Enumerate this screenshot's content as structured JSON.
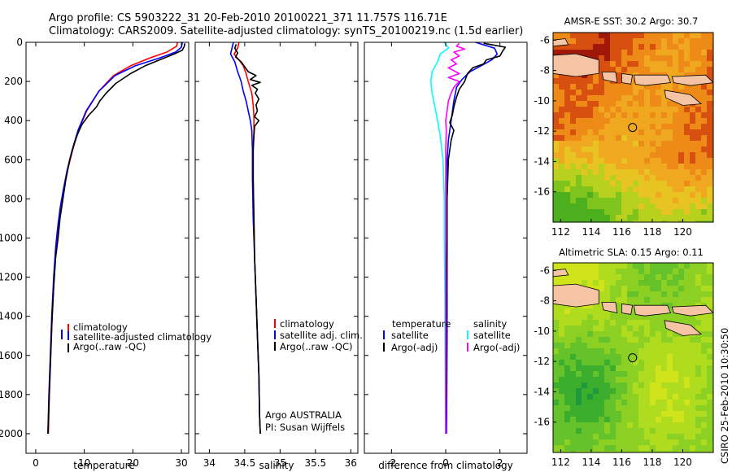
{
  "figure": {
    "title_line1": "Argo profile: CS 5903222_31 20-Feb-2010 20100221_371 11.757S 116.71E",
    "title_line2": "Climatology: CARS2009. Satellite-adjusted climatology: synTS_20100219.nc (1.5d earlier)",
    "credit": "CSIRO 25-Feb-2010 10:30:50"
  },
  "chart_data": [
    {
      "id": "temperature",
      "type": "line",
      "xlabel": "temperature",
      "ylabel": "",
      "xlim": [
        -2,
        31.5
      ],
      "ylim": [
        2100,
        0
      ],
      "xticks": [
        0,
        10,
        20,
        30
      ],
      "yticks": [
        0,
        200,
        400,
        600,
        800,
        1000,
        1200,
        1400,
        1600,
        1800,
        2000
      ],
      "legend_position": "lower-right",
      "series": [
        {
          "name": "climatology",
          "color": "#ff0000",
          "points": [
            [
              29.2,
              0
            ],
            [
              29.0,
              20
            ],
            [
              27.0,
              50
            ],
            [
              23.5,
              80
            ],
            [
              19.5,
              120
            ],
            [
              16.0,
              170
            ],
            [
              13.0,
              250
            ],
            [
              10.5,
              350
            ],
            [
              8.8,
              450
            ],
            [
              7.6,
              550
            ],
            [
              6.6,
              650
            ],
            [
              5.8,
              750
            ],
            [
              5.1,
              850
            ],
            [
              4.6,
              950
            ],
            [
              4.2,
              1050
            ],
            [
              3.8,
              1200
            ],
            [
              3.4,
              1400
            ],
            [
              3.1,
              1600
            ],
            [
              2.8,
              1800
            ],
            [
              2.6,
              2000
            ]
          ]
        },
        {
          "name": "satellite-adjusted climatology",
          "color": "#0000ff",
          "points": [
            [
              30.2,
              0
            ],
            [
              30.0,
              25
            ],
            [
              28.8,
              50
            ],
            [
              25.5,
              80
            ],
            [
              20.5,
              120
            ],
            [
              16.3,
              170
            ],
            [
              13.0,
              250
            ],
            [
              10.4,
              350
            ],
            [
              8.7,
              450
            ],
            [
              7.5,
              550
            ],
            [
              6.5,
              650
            ],
            [
              5.7,
              750
            ],
            [
              5.0,
              850
            ],
            [
              4.5,
              950
            ],
            [
              4.1,
              1050
            ],
            [
              3.7,
              1200
            ],
            [
              3.3,
              1400
            ],
            [
              3.0,
              1600
            ],
            [
              2.7,
              1800
            ],
            [
              2.5,
              2000
            ]
          ]
        },
        {
          "name": "Argo(..raw -QC)",
          "color": "#000000",
          "points": [
            [
              30.7,
              5
            ],
            [
              30.6,
              20
            ],
            [
              30.2,
              40
            ],
            [
              28.5,
              60
            ],
            [
              26.0,
              85
            ],
            [
              22.5,
              120
            ],
            [
              19.5,
              160
            ],
            [
              16.5,
              210
            ],
            [
              14.5,
              260
            ],
            [
              13.2,
              300
            ],
            [
              12.5,
              330
            ],
            [
              11.0,
              370
            ],
            [
              9.5,
              420
            ],
            [
              8.6,
              470
            ],
            [
              7.9,
              520
            ],
            [
              7.0,
              600
            ],
            [
              6.2,
              700
            ],
            [
              5.6,
              800
            ],
            [
              5.0,
              900
            ],
            [
              4.6,
              1000
            ],
            [
              4.1,
              1100
            ],
            [
              3.7,
              1250
            ],
            [
              3.3,
              1450
            ],
            [
              3.0,
              1650
            ],
            [
              2.7,
              1850
            ],
            [
              2.5,
              2000
            ]
          ]
        }
      ]
    },
    {
      "id": "salinity",
      "type": "line",
      "xlabel": "salinity",
      "ylabel": "",
      "xlim": [
        33.8,
        36.1
      ],
      "ylim": [
        2100,
        0
      ],
      "xticks": [
        34,
        34.5,
        35,
        35.5,
        36
      ],
      "legend_position": "lower-right",
      "annotations": [
        "Argo AUSTRALIA",
        "PI: Susan Wijffels"
      ],
      "series": [
        {
          "name": "climatology",
          "color": "#ff0000",
          "points": [
            [
              34.42,
              0
            ],
            [
              34.4,
              30
            ],
            [
              34.35,
              60
            ],
            [
              34.42,
              90
            ],
            [
              34.48,
              120
            ],
            [
              34.52,
              160
            ],
            [
              34.55,
              200
            ],
            [
              34.6,
              260
            ],
            [
              34.62,
              320
            ],
            [
              34.63,
              380
            ],
            [
              34.63,
              450
            ],
            [
              34.62,
              550
            ],
            [
              34.62,
              700
            ],
            [
              34.63,
              900
            ],
            [
              34.64,
              1100
            ],
            [
              34.66,
              1300
            ],
            [
              34.68,
              1500
            ],
            [
              34.7,
              1700
            ],
            [
              34.71,
              1900
            ],
            [
              34.72,
              2000
            ]
          ]
        },
        {
          "name": "satellite adj. clim.",
          "color": "#0000ff",
          "points": [
            [
              34.34,
              0
            ],
            [
              34.32,
              30
            ],
            [
              34.3,
              60
            ],
            [
              34.36,
              100
            ],
            [
              34.4,
              150
            ],
            [
              34.45,
              200
            ],
            [
              34.48,
              250
            ],
            [
              34.52,
              300
            ],
            [
              34.55,
              350
            ],
            [
              34.58,
              400
            ],
            [
              34.6,
              450
            ],
            [
              34.61,
              550
            ],
            [
              34.61,
              700
            ],
            [
              34.62,
              900
            ],
            [
              34.64,
              1100
            ],
            [
              34.66,
              1300
            ],
            [
              34.68,
              1500
            ],
            [
              34.7,
              1700
            ],
            [
              34.71,
              1900
            ],
            [
              34.72,
              2000
            ]
          ]
        },
        {
          "name": "Argo(..raw -QC)",
          "color": "#000000",
          "points": [
            [
              34.38,
              10
            ],
            [
              34.36,
              30
            ],
            [
              34.4,
              55
            ],
            [
              34.37,
              75
            ],
            [
              34.45,
              100
            ],
            [
              34.5,
              125
            ],
            [
              34.55,
              150
            ],
            [
              34.66,
              170
            ],
            [
              34.58,
              190
            ],
            [
              34.72,
              205
            ],
            [
              34.6,
              220
            ],
            [
              34.68,
              240
            ],
            [
              34.65,
              260
            ],
            [
              34.7,
              290
            ],
            [
              34.66,
              320
            ],
            [
              34.68,
              350
            ],
            [
              34.64,
              380
            ],
            [
              34.7,
              400
            ],
            [
              34.64,
              430
            ],
            [
              34.63,
              480
            ],
            [
              34.62,
              550
            ],
            [
              34.62,
              700
            ],
            [
              34.63,
              900
            ],
            [
              34.64,
              1100
            ],
            [
              34.66,
              1300
            ],
            [
              34.68,
              1500
            ],
            [
              34.7,
              1700
            ],
            [
              34.71,
              1900
            ],
            [
              34.72,
              2000
            ]
          ]
        }
      ]
    },
    {
      "id": "difference",
      "type": "line",
      "xlabel": "difference from climatology",
      "ylabel": "",
      "xlim": [
        -3,
        3
      ],
      "ylim": [
        2100,
        0
      ],
      "xticks": [
        -2,
        0,
        2
      ],
      "legend_position": "lower-middle",
      "legend_groups": [
        "temperature",
        "salinity"
      ],
      "series": [
        {
          "name": "satellite",
          "group": "temperature",
          "color": "#0000ff",
          "points": [
            [
              1.1,
              0
            ],
            [
              1.8,
              30
            ],
            [
              1.9,
              60
            ],
            [
              1.7,
              90
            ],
            [
              1.3,
              120
            ],
            [
              0.9,
              150
            ],
            [
              0.6,
              190
            ],
            [
              0.4,
              230
            ],
            [
              0.3,
              300
            ],
            [
              0.2,
              400
            ],
            [
              0.1,
              500
            ],
            [
              0.05,
              600
            ],
            [
              0.05,
              800
            ],
            [
              0.05,
              1000
            ],
            [
              0.05,
              1200
            ],
            [
              0.05,
              1500
            ],
            [
              0.04,
              1800
            ],
            [
              0.03,
              2000
            ]
          ]
        },
        {
          "name": "Argo(-adj)",
          "group": "temperature",
          "color": "#000000",
          "points": [
            [
              1.4,
              5
            ],
            [
              2.2,
              25
            ],
            [
              2.1,
              45
            ],
            [
              2.0,
              70
            ],
            [
              1.5,
              90
            ],
            [
              1.4,
              110
            ],
            [
              1.0,
              130
            ],
            [
              0.8,
              160
            ],
            [
              0.7,
              200
            ],
            [
              0.5,
              240
            ],
            [
              0.4,
              280
            ],
            [
              0.3,
              330
            ],
            [
              0.25,
              370
            ],
            [
              0.15,
              410
            ],
            [
              0.3,
              450
            ],
            [
              0.2,
              500
            ],
            [
              0.1,
              600
            ],
            [
              0.05,
              800
            ],
            [
              0.05,
              1000
            ],
            [
              0.03,
              1200
            ],
            [
              0.02,
              1500
            ],
            [
              0.02,
              1800
            ],
            [
              0.0,
              2000
            ]
          ]
        },
        {
          "name": "satellite",
          "group": "salinity",
          "color": "#00ffff",
          "points": [
            [
              -0.05,
              0
            ],
            [
              0.1,
              30
            ],
            [
              -0.2,
              60
            ],
            [
              -0.3,
              100
            ],
            [
              -0.5,
              150
            ],
            [
              -0.55,
              200
            ],
            [
              -0.5,
              260
            ],
            [
              -0.4,
              330
            ],
            [
              -0.3,
              400
            ],
            [
              -0.2,
              480
            ],
            [
              -0.1,
              600
            ],
            [
              -0.05,
              800
            ],
            [
              -0.05,
              1000
            ],
            [
              -0.03,
              1300
            ],
            [
              -0.02,
              1600
            ],
            [
              -0.01,
              1900
            ],
            [
              0.0,
              2000
            ]
          ]
        },
        {
          "name": "Argo(-adj)",
          "group": "salinity",
          "color": "#ff00ff",
          "points": [
            [
              0.5,
              5
            ],
            [
              0.4,
              20
            ],
            [
              0.7,
              35
            ],
            [
              0.3,
              50
            ],
            [
              0.5,
              70
            ],
            [
              0.2,
              90
            ],
            [
              0.4,
              110
            ],
            [
              0.1,
              130
            ],
            [
              0.5,
              160
            ],
            [
              0.1,
              180
            ],
            [
              0.5,
              200
            ],
            [
              0.3,
              230
            ],
            [
              0.2,
              260
            ],
            [
              0.1,
              300
            ],
            [
              0.05,
              350
            ],
            [
              0.0,
              400
            ],
            [
              0.02,
              450
            ],
            [
              0.0,
              550
            ],
            [
              0.0,
              700
            ],
            [
              0.0,
              900
            ],
            [
              0.0,
              1200
            ],
            [
              0.0,
              1500
            ],
            [
              0.0,
              1800
            ],
            [
              0.0,
              2000
            ]
          ]
        }
      ]
    },
    {
      "id": "sst_map",
      "type": "heatmap",
      "title": "AMSR-E SST: 30.2 Argo: 30.7",
      "xlim": [
        111.5,
        122
      ],
      "ylim": [
        -18,
        -5.5
      ],
      "xticks": [
        112,
        114,
        116,
        118,
        120
      ],
      "yticks": [
        -6,
        -8,
        -10,
        -12,
        -14,
        -16
      ],
      "marker": {
        "lon": 116.71,
        "lat": -11.757
      },
      "palette": [
        "#4caf1e",
        "#7fc41c",
        "#b8d01e",
        "#e8c422",
        "#f0a820",
        "#ee8a18",
        "#d85010",
        "#a01808"
      ]
    },
    {
      "id": "sla_map",
      "type": "heatmap",
      "title": "Altimetric SLA: 0.15 Argo: 0.11",
      "xlim": [
        111.5,
        122
      ],
      "ylim": [
        -18,
        -5.5
      ],
      "xticks": [
        112,
        114,
        116,
        118,
        120
      ],
      "yticks": [
        -6,
        -8,
        -10,
        -12,
        -14,
        -16
      ],
      "marker": {
        "lon": 116.71,
        "lat": -11.757
      },
      "palette": [
        "#1e9a3c",
        "#3cae2e",
        "#66c22a",
        "#8cd024",
        "#b0dc20",
        "#d0e41c"
      ]
    }
  ],
  "legends": {
    "temperature": [
      "climatology",
      "satellite-adjusted climatology",
      "Argo(..raw -QC)"
    ],
    "salinity": [
      "climatology",
      "satellite adj. clim.",
      "Argo(..raw -QC)"
    ],
    "difference": {
      "temperature_header": "temperature",
      "salinity_header": "salinity",
      "temperature_items": [
        "satellite",
        "Argo(-adj)"
      ],
      "salinity_items": [
        "satellite",
        "Argo(-adj)"
      ]
    }
  },
  "colors": {
    "land": "#f4c4a4",
    "coast": "#000000",
    "marker_edge": "#000000"
  }
}
